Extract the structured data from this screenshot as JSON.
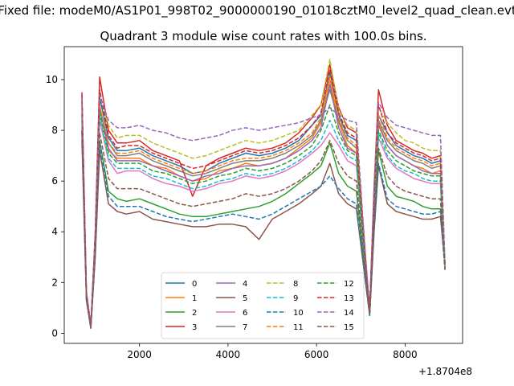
{
  "chart_data": {
    "type": "line",
    "suptitle": "Fixed file: modeM0/AS1P01_998T02_9000000190_01018cztM0_level2_quad_clean.evt",
    "title": "Quadrant 3 module wise count rates with 100.0s bins.",
    "xlabel": "",
    "ylabel": "",
    "x_offset_label": "+1.8704e8",
    "xlim": [
      300,
      9300
    ],
    "ylim": [
      -0.4,
      11.3
    ],
    "xticks": [
      2000,
      4000,
      6000,
      8000
    ],
    "xtick_labels": [
      "2000",
      "4000",
      "6000",
      "8000"
    ],
    "yticks": [
      0,
      2,
      4,
      6,
      8,
      10
    ],
    "ytick_labels": [
      "0",
      "2",
      "4",
      "6",
      "8",
      "10"
    ],
    "legend": {
      "position": "lower-center",
      "columns": 4
    },
    "x": [
      700,
      800,
      900,
      1000,
      1100,
      1300,
      1500,
      1700,
      2000,
      2300,
      2600,
      2900,
      3200,
      3500,
      3800,
      4100,
      4400,
      4700,
      5000,
      5300,
      5600,
      5900,
      6100,
      6300,
      6500,
      6700,
      6900,
      7100,
      7200,
      7300,
      7400,
      7600,
      7800,
      8000,
      8200,
      8400,
      8600,
      8800,
      8900
    ],
    "series": [
      {
        "name": "0",
        "color": "#1f77b4",
        "dash": "solid",
        "values": [
          9.2,
          1.6,
          0.3,
          3.8,
          9.3,
          7.7,
          7.2,
          7.2,
          7.3,
          7.0,
          6.8,
          6.6,
          6.3,
          6.4,
          6.7,
          6.9,
          7.1,
          7.0,
          7.1,
          7.3,
          7.6,
          8.2,
          8.6,
          10.3,
          8.6,
          7.8,
          7.6,
          3.0,
          0.9,
          5.5,
          8.6,
          7.9,
          7.4,
          7.2,
          7.0,
          6.9,
          6.7,
          6.8,
          2.5
        ]
      },
      {
        "name": "1",
        "color": "#ff7f0e",
        "dash": "solid",
        "values": [
          9.0,
          1.5,
          0.3,
          3.6,
          9.0,
          7.2,
          6.9,
          6.9,
          6.9,
          6.6,
          6.5,
          6.2,
          6.0,
          6.1,
          6.4,
          6.5,
          6.7,
          6.6,
          6.7,
          6.9,
          7.3,
          7.7,
          8.3,
          10.0,
          8.3,
          7.4,
          7.1,
          2.8,
          0.8,
          5.2,
          8.3,
          7.4,
          7.0,
          6.8,
          6.6,
          6.5,
          6.3,
          6.4,
          2.6
        ]
      },
      {
        "name": "2",
        "color": "#2ca02c",
        "dash": "solid",
        "values": [
          8.0,
          1.4,
          0.2,
          3.2,
          7.6,
          5.6,
          5.3,
          5.2,
          5.3,
          5.1,
          4.9,
          4.7,
          4.6,
          4.6,
          4.7,
          4.8,
          4.9,
          5.0,
          5.2,
          5.5,
          5.9,
          6.3,
          6.6,
          7.5,
          6.3,
          5.8,
          5.6,
          2.3,
          0.8,
          4.3,
          7.2,
          5.8,
          5.4,
          5.3,
          5.2,
          5.0,
          4.9,
          4.9,
          2.8
        ]
      },
      {
        "name": "3",
        "color": "#d62728",
        "dash": "solid",
        "values": [
          9.5,
          1.6,
          0.3,
          4.0,
          10.1,
          8.0,
          7.5,
          7.5,
          7.6,
          7.2,
          7.0,
          6.8,
          5.4,
          6.6,
          6.9,
          7.1,
          7.3,
          7.2,
          7.3,
          7.5,
          7.9,
          8.5,
          9.0,
          10.6,
          8.9,
          8.1,
          7.9,
          3.1,
          0.9,
          5.7,
          9.6,
          8.2,
          7.6,
          7.4,
          7.2,
          7.1,
          6.9,
          7.0,
          2.7
        ]
      },
      {
        "name": "4",
        "color": "#9467bd",
        "dash": "solid",
        "values": [
          8.6,
          1.5,
          0.3,
          3.7,
          8.9,
          7.3,
          6.8,
          6.8,
          6.8,
          6.6,
          6.4,
          6.2,
          6.0,
          6.2,
          6.3,
          6.5,
          6.6,
          6.6,
          6.7,
          6.9,
          7.2,
          7.6,
          8.1,
          9.8,
          8.1,
          7.3,
          7.1,
          2.8,
          0.8,
          5.2,
          8.2,
          7.4,
          7.0,
          6.8,
          6.6,
          6.4,
          6.3,
          6.3,
          2.6
        ]
      },
      {
        "name": "5",
        "color": "#8c564b",
        "dash": "solid",
        "values": [
          7.6,
          1.3,
          0.2,
          3.0,
          7.2,
          5.1,
          4.8,
          4.7,
          4.8,
          4.5,
          4.4,
          4.3,
          4.2,
          4.2,
          4.3,
          4.3,
          4.2,
          3.7,
          4.5,
          4.8,
          5.1,
          5.5,
          5.8,
          6.7,
          5.5,
          5.1,
          4.9,
          2.1,
          0.7,
          4.0,
          6.6,
          5.1,
          4.8,
          4.7,
          4.6,
          4.5,
          4.5,
          4.6,
          2.7
        ]
      },
      {
        "name": "6",
        "color": "#e377c2",
        "dash": "solid",
        "values": [
          8.3,
          1.4,
          0.2,
          3.5,
          8.4,
          6.8,
          6.3,
          6.4,
          6.4,
          6.1,
          5.9,
          5.8,
          5.6,
          5.7,
          5.9,
          6.0,
          6.2,
          6.1,
          6.2,
          6.4,
          6.7,
          7.1,
          7.4,
          7.9,
          7.4,
          6.8,
          6.6,
          2.6,
          0.8,
          4.9,
          7.7,
          6.9,
          6.5,
          6.3,
          6.1,
          6.0,
          5.9,
          5.9,
          2.5
        ]
      },
      {
        "name": "7",
        "color": "#7f7f7f",
        "dash": "solid",
        "values": [
          9.0,
          1.5,
          0.3,
          3.7,
          8.9,
          7.5,
          7.0,
          7.0,
          7.1,
          6.8,
          6.6,
          6.4,
          6.2,
          6.3,
          6.5,
          6.7,
          6.8,
          6.8,
          6.9,
          7.1,
          7.4,
          7.8,
          8.4,
          9.6,
          8.4,
          7.6,
          7.3,
          2.9,
          0.9,
          5.3,
          8.4,
          7.6,
          7.2,
          7.0,
          6.8,
          6.7,
          6.5,
          6.6,
          2.6
        ]
      },
      {
        "name": "8",
        "color": "#bcbd22",
        "dash": "dashed",
        "values": [
          9.3,
          1.6,
          0.3,
          3.9,
          9.4,
          8.2,
          7.7,
          7.8,
          7.8,
          7.5,
          7.3,
          7.1,
          6.9,
          7.0,
          7.2,
          7.4,
          7.6,
          7.5,
          7.6,
          7.8,
          8.0,
          8.6,
          9.0,
          10.8,
          8.8,
          8.2,
          8.0,
          3.1,
          0.9,
          5.6,
          8.9,
          8.3,
          7.9,
          7.6,
          7.5,
          7.3,
          7.2,
          7.2,
          2.8
        ]
      },
      {
        "name": "9",
        "color": "#17becf",
        "dash": "dashed",
        "values": [
          8.5,
          1.4,
          0.3,
          3.5,
          8.6,
          6.9,
          6.5,
          6.5,
          6.5,
          6.2,
          6.1,
          5.9,
          5.7,
          5.8,
          6.0,
          6.1,
          6.3,
          6.2,
          6.3,
          6.5,
          6.8,
          7.2,
          7.6,
          8.4,
          7.6,
          7.0,
          6.8,
          2.7,
          0.8,
          5.0,
          7.9,
          7.0,
          6.6,
          6.4,
          6.3,
          6.1,
          6.0,
          6.0,
          2.5
        ]
      },
      {
        "name": "10",
        "color": "#1f77b4",
        "dash": "dashed",
        "values": [
          7.9,
          1.3,
          0.2,
          3.1,
          7.5,
          5.4,
          5.0,
          5.0,
          5.0,
          4.8,
          4.6,
          4.5,
          4.4,
          4.5,
          4.6,
          4.7,
          4.6,
          4.5,
          4.7,
          5.0,
          5.3,
          5.6,
          5.8,
          6.2,
          5.7,
          5.3,
          5.1,
          2.1,
          0.7,
          4.1,
          6.7,
          5.3,
          5.0,
          4.9,
          4.8,
          4.7,
          4.7,
          4.8,
          2.5
        ]
      },
      {
        "name": "11",
        "color": "#ff7f0e",
        "dash": "dashed",
        "values": [
          9.1,
          1.5,
          0.3,
          3.7,
          9.0,
          7.5,
          7.1,
          7.1,
          7.2,
          6.9,
          6.7,
          6.5,
          6.3,
          6.4,
          6.6,
          6.8,
          6.9,
          6.9,
          7.0,
          7.2,
          7.5,
          7.9,
          8.5,
          10.1,
          8.5,
          7.7,
          7.4,
          2.9,
          0.9,
          5.4,
          8.6,
          7.7,
          7.3,
          7.1,
          6.9,
          6.8,
          6.6,
          6.7,
          2.6
        ]
      },
      {
        "name": "12",
        "color": "#2ca02c",
        "dash": "dashed",
        "values": [
          8.7,
          1.4,
          0.3,
          3.6,
          8.7,
          7.1,
          6.7,
          6.7,
          6.7,
          6.4,
          6.3,
          6.1,
          5.9,
          6.0,
          6.2,
          6.3,
          6.5,
          6.4,
          6.5,
          6.7,
          7.0,
          7.4,
          8.0,
          9.0,
          7.9,
          7.2,
          7.0,
          2.7,
          0.8,
          5.1,
          8.0,
          7.2,
          6.8,
          6.6,
          6.4,
          6.3,
          6.2,
          6.2,
          2.5
        ]
      },
      {
        "name": "13",
        "color": "#d62728",
        "dash": "dashed",
        "values": [
          9.4,
          1.6,
          0.3,
          3.9,
          9.6,
          7.8,
          7.3,
          7.4,
          7.4,
          7.1,
          6.9,
          6.7,
          6.5,
          6.6,
          6.8,
          7.0,
          7.2,
          7.1,
          7.2,
          7.4,
          7.7,
          8.2,
          8.7,
          10.4,
          8.7,
          7.9,
          7.7,
          3.0,
          0.9,
          5.6,
          9.0,
          7.9,
          7.5,
          7.3,
          7.1,
          7.0,
          6.8,
          6.9,
          2.7
        ]
      },
      {
        "name": "14",
        "color": "#9467bd",
        "dash": "dashed",
        "values": [
          9.3,
          1.6,
          0.3,
          3.9,
          9.4,
          8.4,
          8.1,
          8.1,
          8.2,
          8.0,
          7.9,
          7.7,
          7.6,
          7.7,
          7.8,
          8.0,
          8.1,
          8.0,
          8.1,
          8.2,
          8.3,
          8.5,
          8.6,
          8.9,
          8.6,
          8.4,
          8.3,
          3.2,
          0.9,
          5.9,
          9.1,
          8.5,
          8.2,
          8.1,
          8.0,
          7.9,
          7.8,
          7.8,
          2.9
        ]
      },
      {
        "name": "15",
        "color": "#8c564b",
        "dash": "dashed",
        "values": [
          8.0,
          1.3,
          0.2,
          3.3,
          7.9,
          6.1,
          5.7,
          5.7,
          5.7,
          5.5,
          5.3,
          5.1,
          5.0,
          5.1,
          5.2,
          5.3,
          5.5,
          5.4,
          5.5,
          5.7,
          6.0,
          6.4,
          6.8,
          7.6,
          6.7,
          6.2,
          6.0,
          2.4,
          0.8,
          4.5,
          7.3,
          6.2,
          5.8,
          5.6,
          5.5,
          5.4,
          5.3,
          5.3,
          2.5
        ]
      }
    ]
  }
}
